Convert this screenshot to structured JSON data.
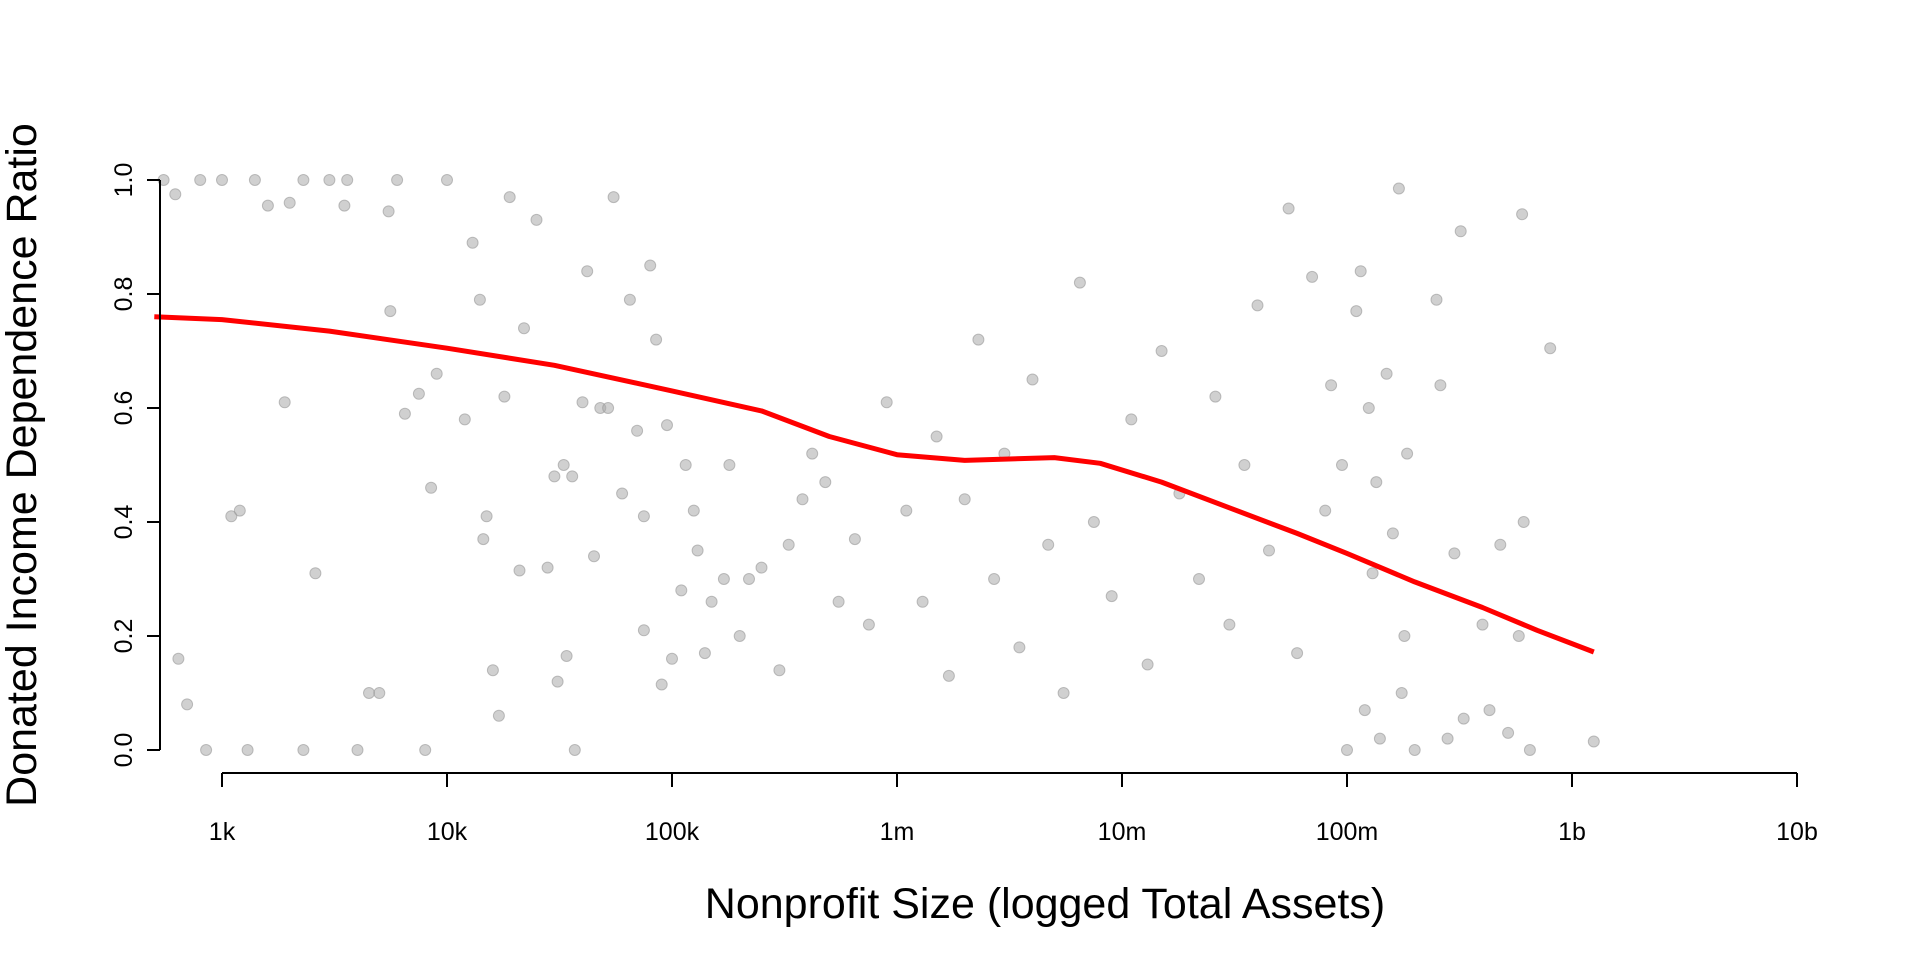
{
  "chart_data": {
    "type": "scatter",
    "title": "",
    "xlabel": "Nonprofit Size (logged Total Assets)",
    "ylabel": "Donated Income Dependence Ratio",
    "x_scale": "log10",
    "x_ticks": [
      {
        "value": 1000,
        "label": "1k"
      },
      {
        "value": 10000,
        "label": "10k"
      },
      {
        "value": 100000,
        "label": "100k"
      },
      {
        "value": 1000000,
        "label": "1m"
      },
      {
        "value": 10000000,
        "label": "10m"
      },
      {
        "value": 100000000,
        "label": "100m"
      },
      {
        "value": 1000000000,
        "label": "1b"
      },
      {
        "value": 10000000000,
        "label": "10b"
      }
    ],
    "y_ticks": [
      {
        "value": 0.0,
        "label": "0.0"
      },
      {
        "value": 0.2,
        "label": "0.2"
      },
      {
        "value": 0.4,
        "label": "0.4"
      },
      {
        "value": 0.6,
        "label": "0.6"
      },
      {
        "value": 0.8,
        "label": "0.8"
      },
      {
        "value": 1.0,
        "label": "1.0"
      }
    ],
    "xlim": [
      500,
      10000000000
    ],
    "ylim": [
      0,
      1
    ],
    "grid": false,
    "legend": "none",
    "point_color": "#a9a9a9",
    "series": [
      {
        "type": "scatter",
        "points": [
          [
            550,
            1.0
          ],
          [
            620,
            0.975
          ],
          [
            640,
            0.16
          ],
          [
            700,
            0.08
          ],
          [
            800,
            1.0
          ],
          [
            850,
            0.0
          ],
          [
            1000,
            1.0
          ],
          [
            1100,
            0.41
          ],
          [
            1200,
            0.42
          ],
          [
            1300,
            0.0
          ],
          [
            1400,
            1.0
          ],
          [
            1600,
            0.955
          ],
          [
            1900,
            0.61
          ],
          [
            2000,
            0.96
          ],
          [
            2300,
            1.0
          ],
          [
            2300,
            0.0
          ],
          [
            2600,
            0.31
          ],
          [
            3000,
            1.0
          ],
          [
            3500,
            0.955
          ],
          [
            3600,
            1.0
          ],
          [
            4000,
            0.0
          ],
          [
            4500,
            0.1
          ],
          [
            5000,
            0.1
          ],
          [
            5500,
            0.945
          ],
          [
            5600,
            0.77
          ],
          [
            6000,
            1.0
          ],
          [
            6500,
            0.59
          ],
          [
            7500,
            0.625
          ],
          [
            8000,
            0.0
          ],
          [
            8500,
            0.46
          ],
          [
            9000,
            0.66
          ],
          [
            10000,
            1.0
          ],
          [
            12000,
            0.58
          ],
          [
            13000,
            0.89
          ],
          [
            14000,
            0.79
          ],
          [
            14500,
            0.37
          ],
          [
            15000,
            0.41
          ],
          [
            16000,
            0.14
          ],
          [
            17000,
            0.06
          ],
          [
            18000,
            0.62
          ],
          [
            19000,
            0.97
          ],
          [
            21000,
            0.315
          ],
          [
            22000,
            0.74
          ],
          [
            25000,
            0.93
          ],
          [
            28000,
            0.32
          ],
          [
            30000,
            0.48
          ],
          [
            31000,
            0.12
          ],
          [
            33000,
            0.5
          ],
          [
            34000,
            0.165
          ],
          [
            36000,
            0.48
          ],
          [
            37000,
            0.0
          ],
          [
            40000,
            0.61
          ],
          [
            42000,
            0.84
          ],
          [
            45000,
            0.34
          ],
          [
            48000,
            0.6
          ],
          [
            52000,
            0.6
          ],
          [
            55000,
            0.97
          ],
          [
            60000,
            0.45
          ],
          [
            65000,
            0.79
          ],
          [
            70000,
            0.56
          ],
          [
            75000,
            0.41
          ],
          [
            75000,
            0.21
          ],
          [
            80000,
            0.85
          ],
          [
            85000,
            0.72
          ],
          [
            90000,
            0.115
          ],
          [
            95000,
            0.57
          ],
          [
            100000,
            0.16
          ],
          [
            110000,
            0.28
          ],
          [
            115000,
            0.5
          ],
          [
            125000,
            0.42
          ],
          [
            130000,
            0.35
          ],
          [
            140000,
            0.17
          ],
          [
            150000,
            0.26
          ],
          [
            170000,
            0.3
          ],
          [
            180000,
            0.5
          ],
          [
            200000,
            0.2
          ],
          [
            220000,
            0.3
          ],
          [
            250000,
            0.32
          ],
          [
            300000,
            0.14
          ],
          [
            330000,
            0.36
          ],
          [
            380000,
            0.44
          ],
          [
            420000,
            0.52
          ],
          [
            480000,
            0.47
          ],
          [
            550000,
            0.26
          ],
          [
            650000,
            0.37
          ],
          [
            750000,
            0.22
          ],
          [
            900000,
            0.61
          ],
          [
            1100000,
            0.42
          ],
          [
            1300000,
            0.26
          ],
          [
            1500000,
            0.55
          ],
          [
            1700000,
            0.13
          ],
          [
            2000000,
            0.44
          ],
          [
            2300000,
            0.72
          ],
          [
            2700000,
            0.3
          ],
          [
            3000000,
            0.52
          ],
          [
            3500000,
            0.18
          ],
          [
            4000000,
            0.65
          ],
          [
            4700000,
            0.36
          ],
          [
            5500000,
            0.1
          ],
          [
            6500000,
            0.82
          ],
          [
            7500000,
            0.4
          ],
          [
            9000000,
            0.27
          ],
          [
            11000000,
            0.58
          ],
          [
            13000000,
            0.15
          ],
          [
            15000000,
            0.7
          ],
          [
            18000000,
            0.45
          ],
          [
            22000000,
            0.3
          ],
          [
            26000000,
            0.62
          ],
          [
            30000000,
            0.22
          ],
          [
            35000000,
            0.5
          ],
          [
            40000000,
            0.78
          ],
          [
            45000000,
            0.35
          ],
          [
            55000000,
            0.95
          ],
          [
            60000000,
            0.17
          ],
          [
            70000000,
            0.83
          ],
          [
            80000000,
            0.42
          ],
          [
            85000000,
            0.64
          ],
          [
            95000000,
            0.5
          ],
          [
            100000000,
            0.0
          ],
          [
            110000000,
            0.77
          ],
          [
            115000000,
            0.84
          ],
          [
            120000000,
            0.07
          ],
          [
            125000000,
            0.6
          ],
          [
            130000000,
            0.31
          ],
          [
            135000000,
            0.47
          ],
          [
            140000000,
            0.02
          ],
          [
            150000000,
            0.66
          ],
          [
            160000000,
            0.38
          ],
          [
            170000000,
            0.985
          ],
          [
            175000000,
            0.1
          ],
          [
            180000000,
            0.2
          ],
          [
            185000000,
            0.52
          ],
          [
            200000000,
            0.0
          ],
          [
            250000000,
            0.79
          ],
          [
            260000000,
            0.64
          ],
          [
            280000000,
            0.02
          ],
          [
            300000000,
            0.345
          ],
          [
            320000000,
            0.91
          ],
          [
            330000000,
            0.055
          ],
          [
            400000000,
            0.22
          ],
          [
            430000000,
            0.07
          ],
          [
            480000000,
            0.36
          ],
          [
            520000000,
            0.03
          ],
          [
            580000000,
            0.2
          ],
          [
            600000000,
            0.94
          ],
          [
            610000000,
            0.4
          ],
          [
            650000000,
            0.0
          ],
          [
            800000000,
            0.705
          ],
          [
            1250000000,
            0.015
          ]
        ]
      },
      {
        "type": "line",
        "color": "#ff0000",
        "points": [
          [
            500,
            0.76
          ],
          [
            1000,
            0.755
          ],
          [
            3000,
            0.735
          ],
          [
            10000,
            0.705
          ],
          [
            30000,
            0.675
          ],
          [
            100000,
            0.63
          ],
          [
            250000,
            0.595
          ],
          [
            500000,
            0.55
          ],
          [
            1000000,
            0.518
          ],
          [
            2000000,
            0.508
          ],
          [
            5000000,
            0.513
          ],
          [
            8000000,
            0.503
          ],
          [
            15000000,
            0.47
          ],
          [
            30000000,
            0.425
          ],
          [
            60000000,
            0.38
          ],
          [
            100000000,
            0.345
          ],
          [
            200000000,
            0.295
          ],
          [
            400000000,
            0.25
          ],
          [
            700000000,
            0.21
          ],
          [
            1250000000,
            0.172
          ]
        ]
      }
    ]
  }
}
